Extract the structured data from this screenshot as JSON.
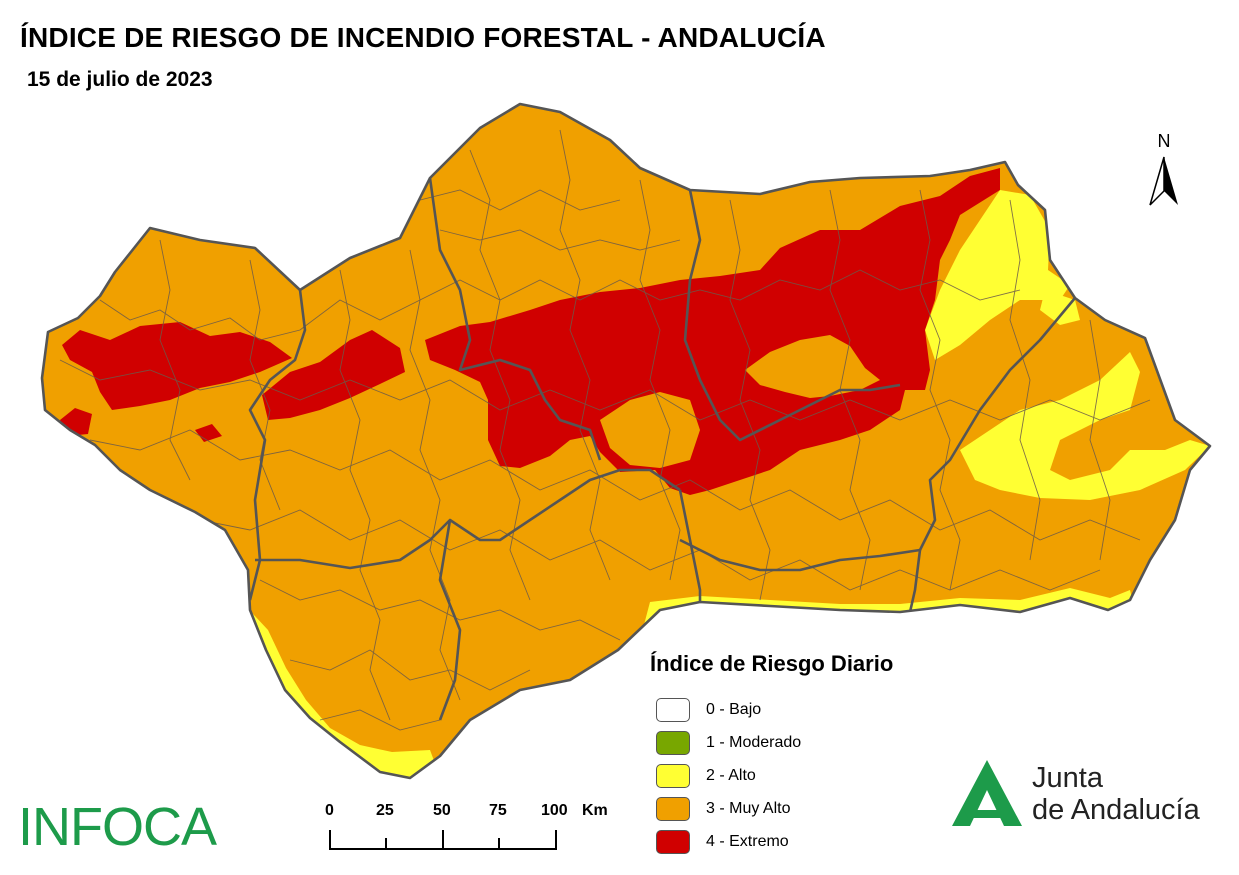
{
  "header": {
    "title": "ÍNDICE DE RIESGO DE INCENDIO FORESTAL - ANDALUCÍA",
    "date": "15 de julio de 2023"
  },
  "north_arrow": {
    "label": "N"
  },
  "legend": {
    "title": "Índice de Riesgo Diario",
    "items": [
      {
        "label": "0 - Bajo",
        "color": "#ffffff"
      },
      {
        "label": "1 - Moderado",
        "color": "#78a700"
      },
      {
        "label": "2 - Alto",
        "color": "#ffff33"
      },
      {
        "label": "3 - Muy Alto",
        "color": "#f0a000"
      },
      {
        "label": "4 - Extremo",
        "color": "#d00000"
      }
    ]
  },
  "scale_bar": {
    "ticks": [
      "0",
      "25",
      "50",
      "75",
      "100"
    ],
    "unit": "Km"
  },
  "branding": {
    "infoca": "INFOCA",
    "junta_line1": "Junta",
    "junta_line2": "de Andalucía",
    "junta_color": "#1d9b4a"
  },
  "map_colors": {
    "muy_alto": "#f0a000",
    "alto": "#ffff33",
    "extremo": "#d00000",
    "municipal_boundaries": "#6b5a4a",
    "province_boundaries": "#555555"
  }
}
